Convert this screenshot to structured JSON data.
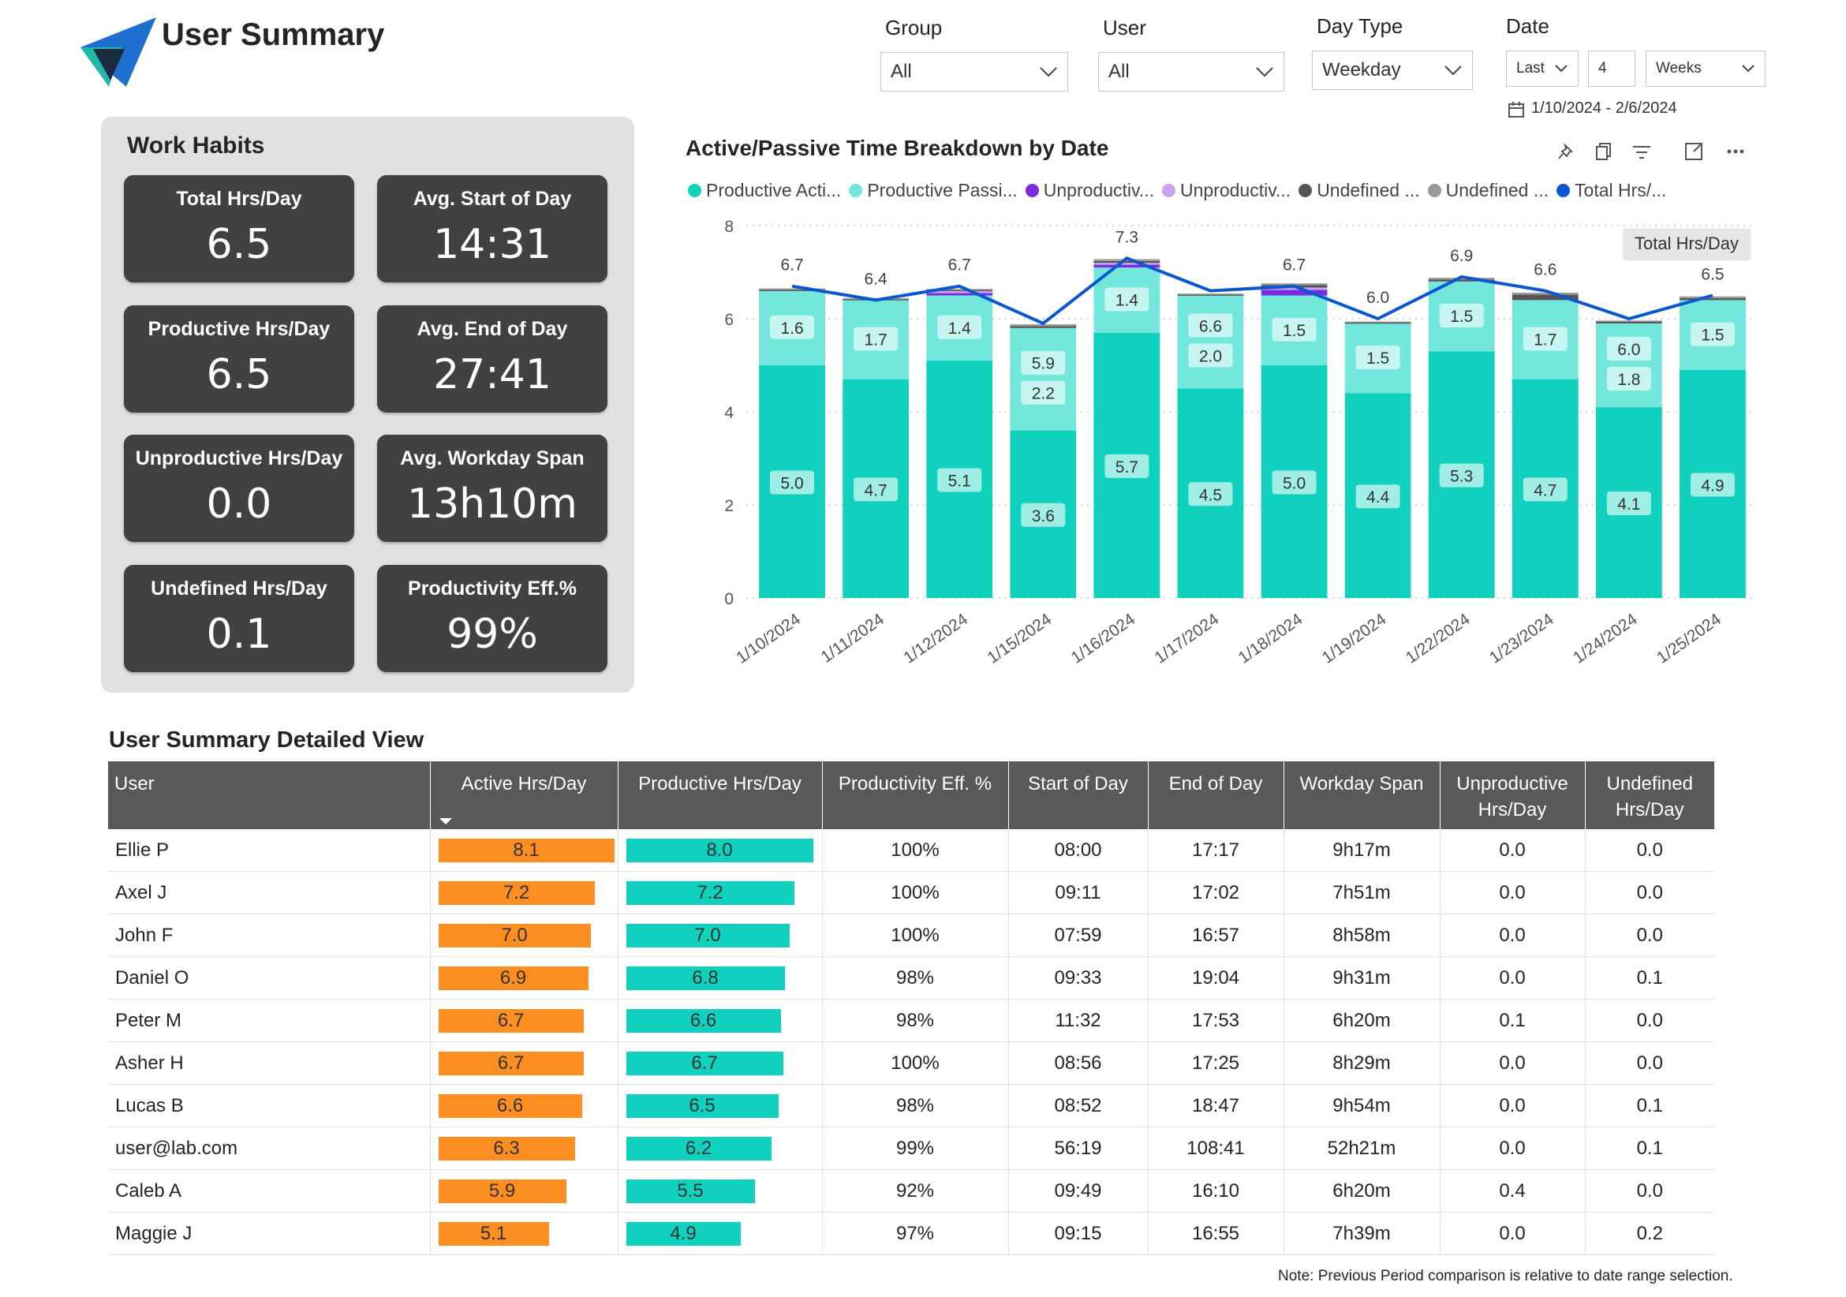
{
  "header": {
    "title": "User Summary",
    "filters": {
      "group": {
        "label": "Group",
        "value": "All"
      },
      "user": {
        "label": "User",
        "value": "All"
      },
      "day_type": {
        "label": "Day Type",
        "value": "Weekday"
      },
      "date": {
        "label": "Date",
        "relative": "Last",
        "count": "4",
        "unit": "Weeks",
        "range": "1/10/2024 - 2/6/2024"
      }
    }
  },
  "work_habits": {
    "title": "Work Habits",
    "cards": [
      {
        "label": "Total Hrs/Day",
        "value": "6.5"
      },
      {
        "label": "Avg. Start of Day",
        "value": "14:31"
      },
      {
        "label": "Productive Hrs/Day",
        "value": "6.5"
      },
      {
        "label": "Avg. End of Day",
        "value": "27:41"
      },
      {
        "label": "Unproductive Hrs/Day",
        "value": "0.0"
      },
      {
        "label": "Avg. Workday Span",
        "value": "13h10m"
      },
      {
        "label": "Undefined Hrs/Day",
        "value": "0.1"
      },
      {
        "label": "Productivity Eff.%",
        "value": "99%"
      }
    ]
  },
  "chart": {
    "title": "Active/Passive Time Breakdown by Date",
    "tooltip": "Total Hrs/Day",
    "legend": [
      {
        "label": "Productive Acti...",
        "color": "#0fd1bd"
      },
      {
        "label": "Productive Passi...",
        "color": "#74e7dc"
      },
      {
        "label": "Unproductiv...",
        "color": "#7b2be0"
      },
      {
        "label": "Unproductiv...",
        "color": "#c9a3ef"
      },
      {
        "label": "Undefined ...",
        "color": "#555555"
      },
      {
        "label": "Undefined ...",
        "color": "#999999"
      },
      {
        "label": "Total Hrs/...",
        "color": "#0b57d0"
      }
    ]
  },
  "chart_data": {
    "type": "bar",
    "title": "Active/Passive Time Breakdown by Date",
    "ylim": [
      0,
      8
    ],
    "yticks": [
      "0",
      "2",
      "4",
      "6",
      "8"
    ],
    "categories": [
      "1/10/2024",
      "1/11/2024",
      "1/12/2024",
      "1/15/2024",
      "1/16/2024",
      "1/17/2024",
      "1/18/2024",
      "1/19/2024",
      "1/22/2024",
      "1/23/2024",
      "1/24/2024",
      "1/25/2024"
    ],
    "series": [
      {
        "name": "Productive Active",
        "color": "#0fd1bd",
        "values": [
          5.0,
          4.7,
          5.1,
          3.6,
          5.7,
          4.5,
          5.0,
          4.4,
          5.3,
          4.7,
          4.1,
          4.9
        ]
      },
      {
        "name": "Productive Passive",
        "color": "#74e7dc",
        "values": [
          1.6,
          1.7,
          1.4,
          2.2,
          1.4,
          2.0,
          1.5,
          1.5,
          1.5,
          1.7,
          1.8,
          1.5
        ]
      },
      {
        "name": "Unproductive Active",
        "color": "#7b2be0",
        "values": [
          0,
          0,
          0.05,
          0,
          0.06,
          0,
          0.12,
          0,
          0,
          0,
          0,
          0
        ]
      },
      {
        "name": "Unproductive Passive",
        "color": "#c9a3ef",
        "values": [
          0,
          0,
          0.05,
          0,
          0.04,
          0,
          0.05,
          0,
          0,
          0,
          0,
          0
        ]
      },
      {
        "name": "Undefined Active",
        "color": "#555555",
        "values": [
          0.02,
          0.02,
          0.02,
          0.04,
          0.04,
          0.02,
          0.05,
          0.02,
          0.04,
          0.12,
          0.04,
          0.04
        ]
      },
      {
        "name": "Undefined Passive",
        "color": "#999999",
        "values": [
          0.03,
          0.02,
          0.02,
          0.04,
          0.04,
          0.02,
          0.04,
          0.02,
          0.04,
          0.04,
          0.02,
          0.04
        ]
      }
    ],
    "segment_labels": {
      "Productive Active": [
        "5.0",
        "4.7",
        "5.1",
        "3.6",
        "5.7",
        "4.5",
        "5.0",
        "4.4",
        "5.3",
        "4.7",
        "4.1",
        "4.9"
      ],
      "Productive Passive": [
        "1.6",
        "1.7",
        "1.4",
        "2.2",
        "1.4",
        "2.0",
        "1.5",
        "1.5",
        "1.5",
        "1.7",
        "1.8",
        "1.5"
      ]
    },
    "inner_total_labels": [
      "",
      "",
      "",
      "5.9",
      "",
      "6.6",
      "",
      "",
      "",
      "",
      "6.0",
      ""
    ],
    "line": {
      "name": "Total Hrs/Day",
      "color": "#0b57d0",
      "values": [
        6.7,
        6.4,
        6.7,
        5.9,
        7.3,
        6.6,
        6.7,
        6.0,
        6.9,
        6.6,
        6.0,
        6.5
      ],
      "labels": [
        "6.7",
        "6.4",
        "6.7",
        "",
        "7.3",
        "",
        "6.7",
        "6.0",
        "6.9",
        "6.6",
        "",
        "6.5"
      ]
    }
  },
  "table": {
    "title": "User Summary Detailed View",
    "columns": [
      "User",
      "Active Hrs/Day",
      "Productive Hrs/Day",
      "Productivity Eff. %",
      "Start of Day",
      "End of Day",
      "Workday Span",
      "Unproductive Hrs/Day",
      "Undefined Hrs/Day"
    ],
    "bar_max": 8.1,
    "rows": [
      {
        "user": "Ellie P",
        "active": "8.1",
        "active_v": 8.1,
        "productive": "8.0",
        "productive_v": 8.0,
        "eff": "100%",
        "start": "08:00",
        "end": "17:17",
        "span": "9h17m",
        "unprod": "0.0",
        "undef": "0.0"
      },
      {
        "user": "Axel J",
        "active": "7.2",
        "active_v": 7.2,
        "productive": "7.2",
        "productive_v": 7.2,
        "eff": "100%",
        "start": "09:11",
        "end": "17:02",
        "span": "7h51m",
        "unprod": "0.0",
        "undef": "0.0"
      },
      {
        "user": "John F",
        "active": "7.0",
        "active_v": 7.0,
        "productive": "7.0",
        "productive_v": 7.0,
        "eff": "100%",
        "start": "07:59",
        "end": "16:57",
        "span": "8h58m",
        "unprod": "0.0",
        "undef": "0.0"
      },
      {
        "user": "Daniel O",
        "active": "6.9",
        "active_v": 6.9,
        "productive": "6.8",
        "productive_v": 6.8,
        "eff": "98%",
        "start": "09:33",
        "end": "19:04",
        "span": "9h31m",
        "unprod": "0.0",
        "undef": "0.1"
      },
      {
        "user": "Peter M",
        "active": "6.7",
        "active_v": 6.7,
        "productive": "6.6",
        "productive_v": 6.6,
        "eff": "98%",
        "start": "11:32",
        "end": "17:53",
        "span": "6h20m",
        "unprod": "0.1",
        "undef": "0.0"
      },
      {
        "user": "Asher H",
        "active": "6.7",
        "active_v": 6.7,
        "productive": "6.7",
        "productive_v": 6.7,
        "eff": "100%",
        "start": "08:56",
        "end": "17:25",
        "span": "8h29m",
        "unprod": "0.0",
        "undef": "0.0"
      },
      {
        "user": "Lucas B",
        "active": "6.6",
        "active_v": 6.6,
        "productive": "6.5",
        "productive_v": 6.5,
        "eff": "98%",
        "start": "08:52",
        "end": "18:47",
        "span": "9h54m",
        "unprod": "0.0",
        "undef": "0.1"
      },
      {
        "user": "user@lab.com",
        "active": "6.3",
        "active_v": 6.3,
        "productive": "6.2",
        "productive_v": 6.2,
        "eff": "99%",
        "start": "56:19",
        "end": "108:41",
        "span": "52h21m",
        "unprod": "0.0",
        "undef": "0.1"
      },
      {
        "user": "Caleb A",
        "active": "5.9",
        "active_v": 5.9,
        "productive": "5.5",
        "productive_v": 5.5,
        "eff": "92%",
        "start": "09:49",
        "end": "16:10",
        "span": "6h20m",
        "unprod": "0.4",
        "undef": "0.0"
      },
      {
        "user": "Maggie J",
        "active": "5.1",
        "active_v": 5.1,
        "productive": "4.9",
        "productive_v": 4.9,
        "eff": "97%",
        "start": "09:15",
        "end": "16:55",
        "span": "7h39m",
        "unprod": "0.0",
        "undef": "0.2"
      }
    ],
    "note": "Note: Previous Period comparison is relative to date range selection."
  }
}
